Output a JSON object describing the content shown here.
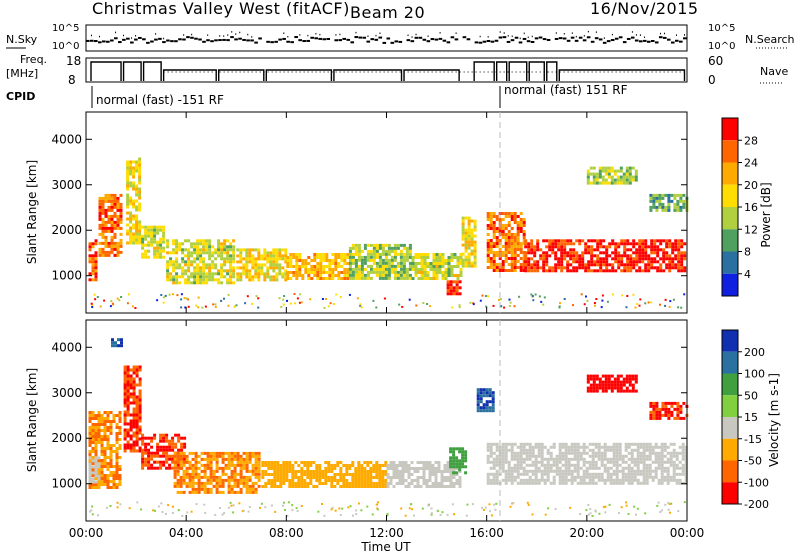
{
  "header": {
    "station": "Christmas Valley West (fitACF)",
    "beam": "Beam 20",
    "date": "16/Nov/2015"
  },
  "nsky_panel": {
    "left_label": "N.Sky",
    "right_label": "N.Search",
    "left_ticks": [
      "10^5",
      "10^0"
    ],
    "right_ticks": [
      "10^5",
      "10^0"
    ]
  },
  "freq_panel": {
    "left_label": "Freq.",
    "left_unit": "[MHz]",
    "right_label": "Nave",
    "left_ticks": [
      "18",
      "8"
    ],
    "right_ticks": [
      "60",
      "0"
    ]
  },
  "cpid_panel": {
    "label": "CPID",
    "modes": [
      "normal (fast) -151 RF",
      "normal (fast) 151 RF"
    ]
  },
  "chart_data": [
    {
      "type": "heatmap",
      "panel": "power",
      "ylabel": "Slant Range [km]",
      "yticks": [
        "4000",
        "3000",
        "2000",
        "1000"
      ],
      "ylim": [
        180,
        4600
      ],
      "xlim": [
        0,
        24
      ],
      "colorbar_label": "Power [dB]",
      "colorbar_ticks": [
        "28",
        "24",
        "20",
        "16",
        "12",
        "8",
        "4"
      ],
      "colors": [
        "#ff0000",
        "#ff6600",
        "#ffaa00",
        "#ffdd00",
        "#b0d040",
        "#50a060",
        "#2a70a0",
        "#1020e0"
      ],
      "echo_regions": [
        {
          "t0": 0.1,
          "t1": 0.5,
          "r0": 900,
          "r1": 1800,
          "v": 24
        },
        {
          "t0": 0.5,
          "t1": 1.4,
          "r0": 1400,
          "r1": 2800,
          "v": 22
        },
        {
          "t0": 1.6,
          "t1": 2.2,
          "r0": 1700,
          "r1": 3600,
          "v": 16
        },
        {
          "t0": 2.2,
          "t1": 3.2,
          "r0": 1400,
          "r1": 2100,
          "v": 14
        },
        {
          "t0": 3.2,
          "t1": 6.0,
          "r0": 800,
          "r1": 1800,
          "v": 14
        },
        {
          "t0": 6.0,
          "t1": 8.0,
          "r0": 900,
          "r1": 1600,
          "v": 16
        },
        {
          "t0": 8.0,
          "t1": 10.5,
          "r0": 900,
          "r1": 1500,
          "v": 18
        },
        {
          "t0": 10.5,
          "t1": 13.0,
          "r0": 900,
          "r1": 1700,
          "v": 12
        },
        {
          "t0": 13.0,
          "t1": 15.0,
          "r0": 900,
          "r1": 1500,
          "v": 14
        },
        {
          "t0": 14.4,
          "t1": 15.0,
          "r0": 600,
          "r1": 900,
          "v": 26
        },
        {
          "t0": 15.0,
          "t1": 15.6,
          "r0": 1200,
          "r1": 2300,
          "v": 16
        },
        {
          "t0": 16.0,
          "t1": 17.5,
          "r0": 1100,
          "r1": 2400,
          "v": 22
        },
        {
          "t0": 17.5,
          "t1": 24.0,
          "r0": 1100,
          "r1": 1800,
          "v": 26
        },
        {
          "t0": 20.0,
          "t1": 22.0,
          "r0": 3000,
          "r1": 3400,
          "v": 12
        },
        {
          "t0": 22.5,
          "t1": 24.0,
          "r0": 2400,
          "r1": 2800,
          "v": 10
        }
      ]
    },
    {
      "type": "heatmap",
      "panel": "velocity",
      "ylabel": "Slant Range [km]",
      "yticks": [
        "4000",
        "3000",
        "2000",
        "1000"
      ],
      "ylim": [
        180,
        4600
      ],
      "xlim": [
        0,
        24
      ],
      "xlabel": "Time UT",
      "xticks": [
        "00:00",
        "04:00",
        "08:00",
        "12:00",
        "16:00",
        "20:00",
        "00:00"
      ],
      "colorbar_label": "Velocity [m s-1]",
      "colorbar_ticks": [
        "200",
        "100",
        "50",
        "15",
        "-15",
        "-50",
        "-100",
        "-200"
      ],
      "colors": [
        "#1030b0",
        "#2a70a0",
        "#40a040",
        "#80d040",
        "#c8c8c0",
        "#ffaa00",
        "#ff6600",
        "#ff0000"
      ],
      "echo_regions": [
        {
          "t0": 0.1,
          "t1": 1.4,
          "r0": 900,
          "r1": 2600,
          "v": -50
        },
        {
          "t0": 0.1,
          "t1": 0.6,
          "r0": 1000,
          "r1": 1600,
          "v": 0
        },
        {
          "t0": 1.5,
          "t1": 2.2,
          "r0": 1700,
          "r1": 3600,
          "v": -100
        },
        {
          "t0": 2.2,
          "t1": 4.0,
          "r0": 1300,
          "r1": 2100,
          "v": -100
        },
        {
          "t0": 3.5,
          "t1": 7.0,
          "r0": 800,
          "r1": 1700,
          "v": -50
        },
        {
          "t0": 7.0,
          "t1": 12.0,
          "r0": 900,
          "r1": 1500,
          "v": -30
        },
        {
          "t0": 12.0,
          "t1": 15.0,
          "r0": 900,
          "r1": 1500,
          "v": 0
        },
        {
          "t0": 14.5,
          "t1": 15.2,
          "r0": 1200,
          "r1": 1800,
          "v": 60
        },
        {
          "t0": 16.0,
          "t1": 24.0,
          "r0": 1000,
          "r1": 1900,
          "v": 0
        },
        {
          "t0": 15.6,
          "t1": 16.3,
          "r0": 2600,
          "r1": 3100,
          "v": 200
        },
        {
          "t0": 20.0,
          "t1": 22.0,
          "r0": 3000,
          "r1": 3400,
          "v": -200
        },
        {
          "t0": 22.5,
          "t1": 24.0,
          "r0": 2400,
          "r1": 2800,
          "v": -100
        },
        {
          "t0": 1.0,
          "t1": 1.5,
          "r0": 4000,
          "r1": 4200,
          "v": 200
        }
      ]
    }
  ]
}
